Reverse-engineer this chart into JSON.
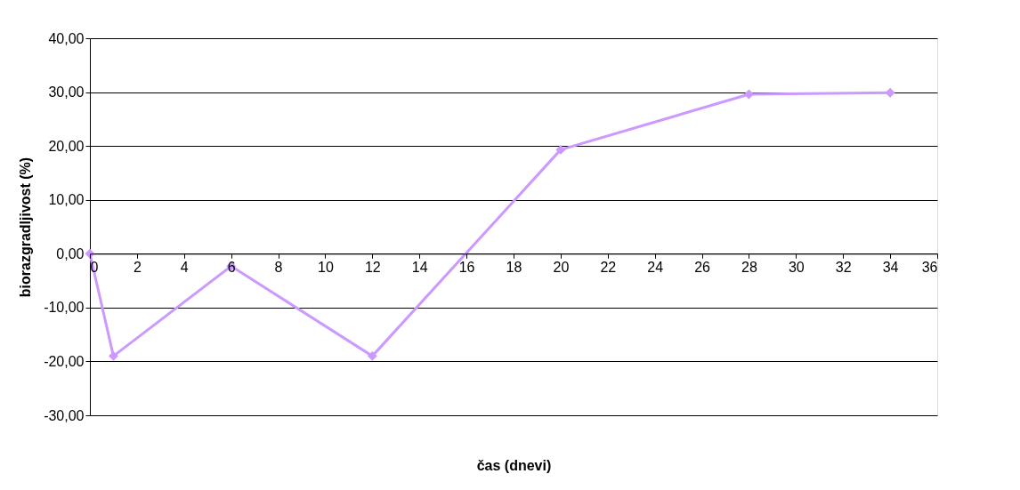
{
  "chart_data": {
    "type": "line",
    "xlabel": "čas (dnevi)",
    "ylabel": "biorazgradljivost (%)",
    "x": [
      0,
      1,
      6,
      12,
      20,
      28,
      34
    ],
    "series": [
      {
        "color": "#cc99ff",
        "values": [
          0,
          -19,
          -2.3,
          -19,
          19.3,
          29.6,
          29.9
        ]
      }
    ],
    "xlim": [
      0,
      36
    ],
    "xticks": [
      0,
      2,
      4,
      6,
      8,
      10,
      12,
      14,
      16,
      18,
      20,
      22,
      24,
      26,
      28,
      30,
      32,
      34,
      36
    ],
    "ylim": [
      -30,
      40
    ],
    "yticks": [
      {
        "value": -30,
        "label": "-30,00"
      },
      {
        "value": -20,
        "label": "-20,00"
      },
      {
        "value": -10,
        "label": "-10,00"
      },
      {
        "value": 0,
        "label": "0,00"
      },
      {
        "value": 10,
        "label": "10,00"
      },
      {
        "value": 20,
        "label": "20,00"
      },
      {
        "value": 30,
        "label": "30,00"
      },
      {
        "value": 40,
        "label": "40,00"
      }
    ],
    "grid": "y",
    "marker": "diamond",
    "line_style": "solid"
  }
}
